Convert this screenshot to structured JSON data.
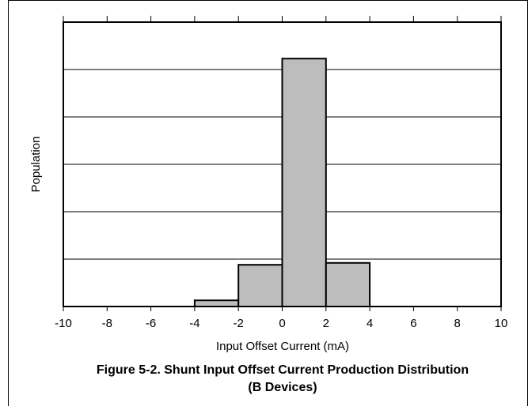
{
  "chart_data": {
    "type": "histogram",
    "title": [
      "Figure 5-2. Shunt Input Offset Current Production Distribution",
      "(B Devices)"
    ],
    "xlabel": "Input Offset Current (mA)",
    "ylabel": "Population",
    "bins": [
      -10,
      -8,
      -6,
      -4,
      -2,
      0,
      2,
      4,
      6,
      8,
      10
    ],
    "counts": [
      0,
      0,
      0,
      0.13,
      0.88,
      5.23,
      0.92,
      0,
      0,
      0
    ],
    "color": "#bdbdbd",
    "xlim": [
      -10,
      10
    ],
    "xticks": [
      -10,
      -8,
      -6,
      -4,
      -2,
      0,
      2,
      4,
      6,
      8,
      10
    ],
    "ylim": [
      0,
      6
    ],
    "yticks": [
      0,
      1,
      2,
      3,
      4,
      5,
      6
    ],
    "grid": true
  }
}
